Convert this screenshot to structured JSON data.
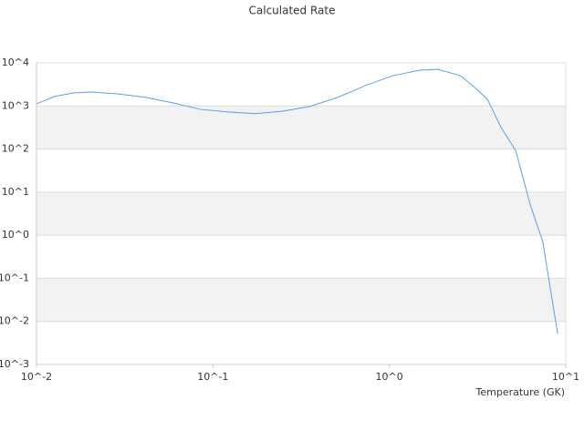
{
  "chart_data": {
    "type": "line",
    "title": "Calculated Rate",
    "x_label": "Temperature (GK)",
    "x_log": true,
    "y_log": true,
    "grid": true,
    "bands": true,
    "xlim": [
      0.01,
      10
    ],
    "ylim": [
      0.001,
      10000
    ],
    "xticks": [
      {
        "value": 0.01,
        "label": "10^-2"
      },
      {
        "value": 0.1,
        "label": "10^-1"
      },
      {
        "value": 1,
        "label": "10^0"
      },
      {
        "value": 10,
        "label": "10^1"
      }
    ],
    "yticks": [
      {
        "value": 0.001,
        "label": "10^-3"
      },
      {
        "value": 0.01,
        "label": "10^-2"
      },
      {
        "value": 0.1,
        "label": "10^-1"
      },
      {
        "value": 1,
        "label": "10^0"
      },
      {
        "value": 10,
        "label": "10^1"
      },
      {
        "value": 100,
        "label": "10^2"
      },
      {
        "value": 1000,
        "label": "10^3"
      },
      {
        "value": 10000,
        "label": "10^4"
      }
    ],
    "x": [
      0.01,
      0.0127,
      0.0161,
      0.0204,
      0.0292,
      0.0417,
      0.0596,
      0.0852,
      0.122,
      0.174,
      0.249,
      0.356,
      0.51,
      0.73,
      1.04,
      1.49,
      1.89,
      2.54,
      3.05,
      3.6,
      4.3,
      5.2,
      6.3,
      7.4,
      9.0
    ],
    "series": [
      {
        "color": "#5b9fe6",
        "values": [
          1120,
          1660,
          2000,
          2100,
          1900,
          1580,
          1175,
          832,
          724,
          661,
          759,
          977,
          1580,
          2950,
          5010,
          6760,
          7080,
          5010,
          2690,
          1420,
          316,
          93,
          5,
          0.72,
          0.0052
        ]
      }
    ]
  }
}
